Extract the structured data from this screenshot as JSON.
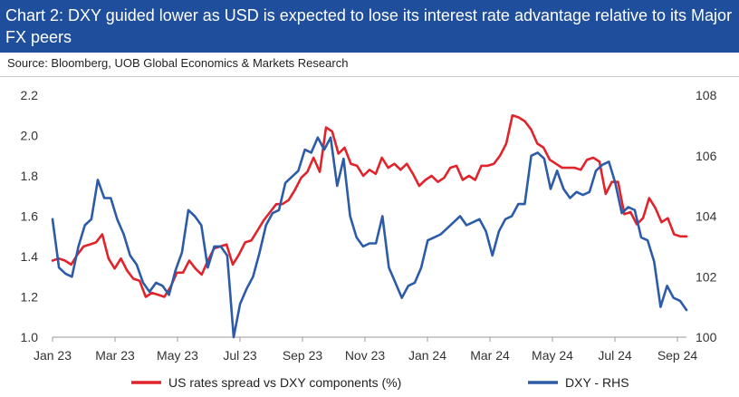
{
  "header": {
    "title": "Chart 2: DXY guided lower as USD is expected to lose its interest rate advantage relative to its Major FX peers",
    "source": "Source: Bloomberg, UOB Global Economics & Markets Research"
  },
  "chart_data": {
    "type": "line",
    "title": "",
    "xlabel": "",
    "ylabel": "",
    "x_ticks": [
      "Jan 23",
      "Mar 23",
      "May 23",
      "Jul 23",
      "Sep 23",
      "Nov 23",
      "Jan 24",
      "Mar 24",
      "May 24",
      "Jul 24",
      "Sep 24"
    ],
    "y_left": {
      "ticks": [
        "1.0",
        "1.2",
        "1.4",
        "1.6",
        "1.8",
        "2.0",
        "2.2"
      ],
      "range": [
        1.0,
        2.2
      ]
    },
    "y_right": {
      "ticks": [
        "100",
        "102",
        "104",
        "106",
        "108"
      ],
      "range": [
        100,
        108
      ]
    },
    "grid": false,
    "legend_position": "bottom",
    "series": [
      {
        "name": "US rates spread vs DXY components (%)",
        "axis": "left",
        "color": "#e1232b",
        "values": [
          1.38,
          1.39,
          1.38,
          1.36,
          1.41,
          1.45,
          1.46,
          1.47,
          1.51,
          1.39,
          1.34,
          1.39,
          1.33,
          1.29,
          1.28,
          1.2,
          1.22,
          1.21,
          1.2,
          1.25,
          1.32,
          1.32,
          1.38,
          1.34,
          1.31,
          1.38,
          1.44,
          1.45,
          1.46,
          1.36,
          1.41,
          1.47,
          1.48,
          1.53,
          1.58,
          1.62,
          1.66,
          1.66,
          1.68,
          1.73,
          1.79,
          1.82,
          1.89,
          1.82,
          2.04,
          2.02,
          1.91,
          1.94,
          1.86,
          1.85,
          1.8,
          1.83,
          1.81,
          1.89,
          1.84,
          1.86,
          1.83,
          1.86,
          1.81,
          1.75,
          1.78,
          1.8,
          1.77,
          1.79,
          1.84,
          1.85,
          1.78,
          1.8,
          1.78,
          1.85,
          1.85,
          1.86,
          1.9,
          1.96,
          2.1,
          2.09,
          2.07,
          2.03,
          1.96,
          1.94,
          1.88,
          1.86,
          1.84,
          1.84,
          1.84,
          1.83,
          1.88,
          1.89,
          1.87,
          1.71,
          1.77,
          1.77,
          1.61,
          1.62,
          1.56,
          1.59,
          1.69,
          1.64,
          1.57,
          1.59,
          1.51,
          1.5,
          1.5
        ]
      },
      {
        "name": "DXY - RHS",
        "axis": "right",
        "color": "#2c5ba8",
        "values": [
          103.9,
          102.3,
          102.1,
          102.0,
          103.0,
          103.7,
          103.9,
          105.2,
          104.6,
          104.6,
          103.9,
          103.4,
          102.7,
          102.4,
          101.8,
          101.5,
          101.8,
          101.7,
          101.4,
          102.2,
          102.8,
          104.2,
          104.0,
          103.7,
          102.3,
          103.0,
          103.0,
          102.7,
          100.0,
          101.1,
          101.6,
          102.0,
          102.8,
          103.7,
          104.1,
          104.2,
          105.1,
          105.3,
          105.5,
          106.2,
          106.1,
          106.6,
          106.2,
          106.6,
          105.0,
          105.9,
          104.0,
          103.3,
          103.0,
          103.1,
          103.1,
          104.0,
          102.3,
          101.8,
          101.3,
          101.7,
          101.8,
          102.3,
          103.2,
          103.3,
          103.4,
          103.6,
          103.8,
          104.0,
          103.7,
          103.8,
          103.9,
          103.5,
          102.7,
          103.5,
          103.9,
          104.0,
          104.4,
          104.4,
          106.0,
          106.1,
          105.9,
          104.9,
          105.5,
          104.9,
          104.6,
          104.8,
          104.7,
          104.8,
          105.5,
          105.7,
          105.8,
          105.1,
          104.1,
          104.3,
          104.2,
          103.3,
          103.2,
          102.5,
          101.0,
          101.7,
          101.3,
          101.2,
          100.9
        ]
      }
    ]
  }
}
